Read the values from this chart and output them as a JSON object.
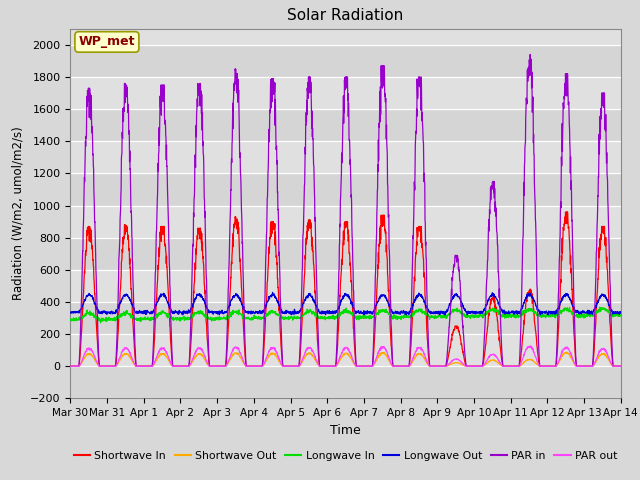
{
  "title": "Solar Radiation",
  "xlabel": "Time",
  "ylabel": "Radiation (W/m2, umol/m2/s)",
  "ylim": [
    -200,
    2100
  ],
  "yticks": [
    -200,
    0,
    200,
    400,
    600,
    800,
    1000,
    1200,
    1400,
    1600,
    1800,
    2000
  ],
  "num_days": 15,
  "fig_bg_color": "#d8d8d8",
  "plot_bg_color": "#e0e0e0",
  "grid_color": "#ffffff",
  "annotation_text": "WP_met",
  "annotation_bg": "#ffffcc",
  "annotation_border": "#999900",
  "colors": {
    "shortwave_in": "#ff0000",
    "shortwave_out": "#ffaa00",
    "longwave_in": "#00dd00",
    "longwave_out": "#0000dd",
    "par_in": "#9900cc",
    "par_out": "#ff44ff"
  },
  "legend_labels": [
    "Shortwave In",
    "Shortwave Out",
    "Longwave In",
    "Longwave Out",
    "PAR in",
    "PAR out"
  ],
  "tick_labels": [
    "Mar 30",
    "Mar 31",
    "Apr 1",
    "Apr 2",
    "Apr 3",
    "Apr 4",
    "Apr 5",
    "Apr 6",
    "Apr 7",
    "Apr 8",
    "Apr 9",
    "Apr 10",
    "Apr 11",
    "Apr 12",
    "Apr 13",
    "Apr 14"
  ]
}
